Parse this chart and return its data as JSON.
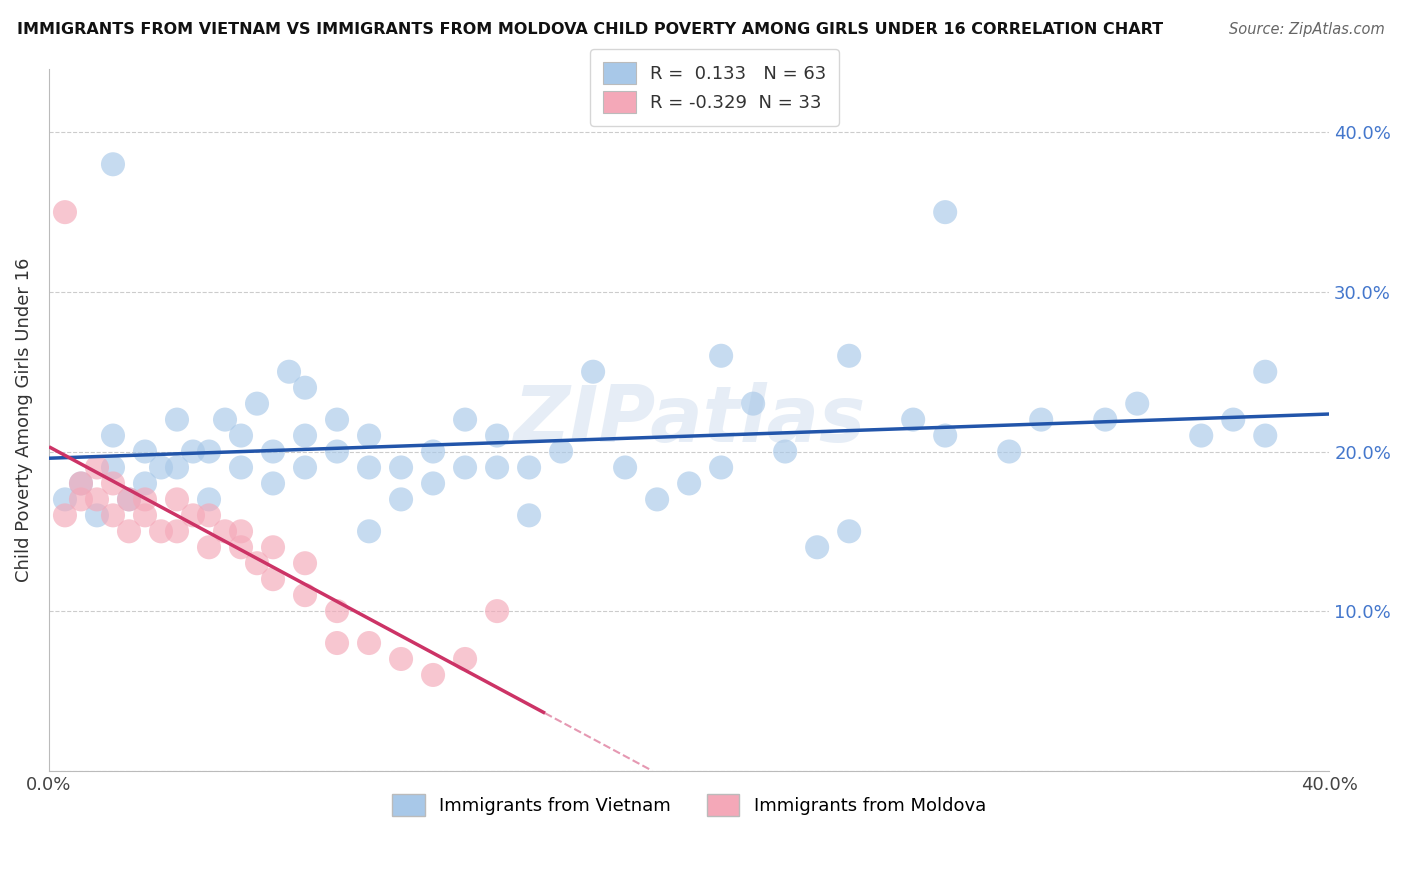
{
  "title": "IMMIGRANTS FROM VIETNAM VS IMMIGRANTS FROM MOLDOVA CHILD POVERTY AMONG GIRLS UNDER 16 CORRELATION CHART",
  "source": "Source: ZipAtlas.com",
  "ylabel": "Child Poverty Among Girls Under 16",
  "xlim": [
    0.0,
    0.4
  ],
  "ylim": [
    0.0,
    0.44
  ],
  "r_vietnam": 0.133,
  "n_vietnam": 63,
  "r_moldova": -0.329,
  "n_moldova": 33,
  "color_vietnam": "#a8c8e8",
  "color_moldova": "#f4a8b8",
  "line_color_vietnam": "#2255aa",
  "line_color_moldova": "#cc3366",
  "vietnam_x": [
    0.005,
    0.01,
    0.015,
    0.02,
    0.02,
    0.025,
    0.03,
    0.03,
    0.035,
    0.04,
    0.04,
    0.045,
    0.05,
    0.05,
    0.055,
    0.06,
    0.06,
    0.065,
    0.07,
    0.07,
    0.075,
    0.08,
    0.08,
    0.08,
    0.09,
    0.09,
    0.1,
    0.1,
    0.1,
    0.11,
    0.11,
    0.12,
    0.12,
    0.13,
    0.13,
    0.14,
    0.14,
    0.15,
    0.15,
    0.16,
    0.17,
    0.18,
    0.19,
    0.2,
    0.21,
    0.22,
    0.23,
    0.24,
    0.25,
    0.27,
    0.28,
    0.3,
    0.31,
    0.33,
    0.34,
    0.36,
    0.37,
    0.38,
    0.38,
    0.21,
    0.25,
    0.28,
    0.02
  ],
  "vietnam_y": [
    0.17,
    0.18,
    0.16,
    0.19,
    0.21,
    0.17,
    0.18,
    0.2,
    0.19,
    0.19,
    0.22,
    0.2,
    0.17,
    0.2,
    0.22,
    0.19,
    0.21,
    0.23,
    0.18,
    0.2,
    0.25,
    0.19,
    0.21,
    0.24,
    0.2,
    0.22,
    0.15,
    0.19,
    0.21,
    0.17,
    0.19,
    0.18,
    0.2,
    0.19,
    0.22,
    0.19,
    0.21,
    0.16,
    0.19,
    0.2,
    0.25,
    0.19,
    0.17,
    0.18,
    0.19,
    0.23,
    0.2,
    0.14,
    0.15,
    0.22,
    0.21,
    0.2,
    0.22,
    0.22,
    0.23,
    0.21,
    0.22,
    0.21,
    0.25,
    0.26,
    0.26,
    0.35,
    0.38
  ],
  "moldova_x": [
    0.005,
    0.01,
    0.01,
    0.015,
    0.015,
    0.02,
    0.02,
    0.025,
    0.025,
    0.03,
    0.03,
    0.035,
    0.04,
    0.04,
    0.045,
    0.05,
    0.05,
    0.055,
    0.06,
    0.06,
    0.065,
    0.07,
    0.07,
    0.08,
    0.08,
    0.09,
    0.09,
    0.1,
    0.11,
    0.12,
    0.13,
    0.14,
    0.005
  ],
  "moldova_y": [
    0.16,
    0.17,
    0.18,
    0.17,
    0.19,
    0.16,
    0.18,
    0.17,
    0.15,
    0.16,
    0.17,
    0.15,
    0.15,
    0.17,
    0.16,
    0.14,
    0.16,
    0.15,
    0.14,
    0.15,
    0.13,
    0.14,
    0.12,
    0.13,
    0.11,
    0.1,
    0.08,
    0.08,
    0.07,
    0.06,
    0.07,
    0.1,
    0.35
  ],
  "moldova_line_xstart": 0.0,
  "moldova_line_xend": 0.155,
  "vietnam_line_xstart": 0.0,
  "vietnam_line_xend": 0.4
}
